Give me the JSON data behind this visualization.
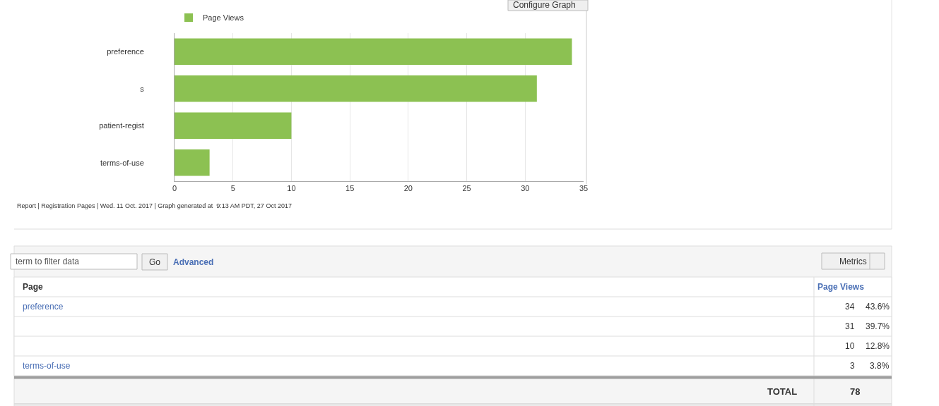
{
  "chart_data": [
    {
      "type": "bar",
      "orientation": "horizontal",
      "categories": [
        "preference",
        "s",
        "patient-regist",
        "terms-of-use"
      ],
      "series": [
        {
          "name": "Page Views",
          "color": "#8cc152",
          "values": [
            34,
            31,
            10,
            3
          ]
        }
      ],
      "xlim": [
        0,
        35
      ],
      "xticks": [
        0,
        5,
        10,
        15,
        20,
        25,
        30,
        35
      ],
      "grid": "x",
      "legend": "top left",
      "annotations": [
        "Configure Graph",
        "Report | Registration Pages | Wed. 11 Oct. 2017 | Graph generated at  9:13 AM PDT, 27 Oct 2017"
      ]
    },
    {
      "type": "other",
      "xlabel": "Page",
      "categories": [
        "preference",
        null,
        null,
        "terms-of-use"
      ],
      "series": [
        {
          "name": "Page Views",
          "color": "#ffffff",
          "values": [
            34,
            31,
            10,
            3
          ]
        }
      ],
      "data_labels": true,
      "totals": [
        "78"
      ],
      "annotations": [
        "term to filter data",
        "Go",
        "Advanced",
        "Metrics",
        "43.6%",
        "39.7%",
        "12.8%",
        "3.8%",
        "TOTAL"
      ]
    }
  ]
}
